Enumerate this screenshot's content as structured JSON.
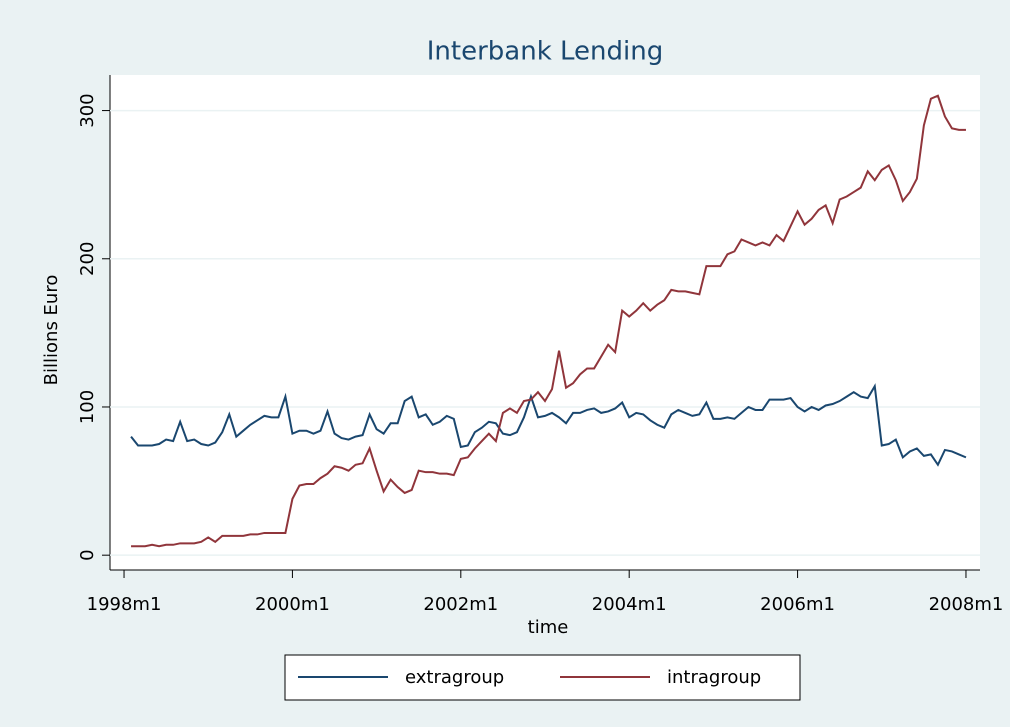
{
  "chart_data": {
    "type": "line",
    "title": "Interbank Lending",
    "x_label": "time",
    "y_label": "Billions Euro",
    "x": [
      "1998m2",
      "1998m3",
      "1998m4",
      "1998m5",
      "1998m6",
      "1998m7",
      "1998m8",
      "1998m9",
      "1998m10",
      "1998m11",
      "1998m12",
      "1999m1",
      "1999m2",
      "1999m3",
      "1999m4",
      "1999m5",
      "1999m6",
      "1999m7",
      "1999m8",
      "1999m9",
      "1999m10",
      "1999m11",
      "1999m12",
      "2000m1",
      "2000m2",
      "2000m3",
      "2000m4",
      "2000m5",
      "2000m6",
      "2000m7",
      "2000m8",
      "2000m9",
      "2000m10",
      "2000m11",
      "2000m12",
      "2001m1",
      "2001m2",
      "2001m3",
      "2001m4",
      "2001m5",
      "2001m6",
      "2001m7",
      "2001m8",
      "2001m9",
      "2001m10",
      "2001m11",
      "2001m12",
      "2002m1",
      "2002m2",
      "2002m3",
      "2002m4",
      "2002m5",
      "2002m6",
      "2002m7",
      "2002m8",
      "2002m9",
      "2002m10",
      "2002m11",
      "2002m12",
      "2003m1",
      "2003m2",
      "2003m3",
      "2003m4",
      "2003m5",
      "2003m6",
      "2003m7",
      "2003m8",
      "2003m9",
      "2003m10",
      "2003m11",
      "2003m12",
      "2004m1",
      "2004m2",
      "2004m3",
      "2004m4",
      "2004m5",
      "2004m6",
      "2004m7",
      "2004m8",
      "2004m9",
      "2004m10",
      "2004m11",
      "2004m12",
      "2005m1",
      "2005m2",
      "2005m3",
      "2005m4",
      "2005m5",
      "2005m6",
      "2005m7",
      "2005m8",
      "2005m9",
      "2005m10",
      "2005m11",
      "2005m12",
      "2006m1",
      "2006m2",
      "2006m3",
      "2006m4",
      "2006m5",
      "2006m6",
      "2006m7",
      "2006m8",
      "2006m9",
      "2006m10",
      "2006m11",
      "2006m12",
      "2007m1",
      "2007m2",
      "2007m3",
      "2007m4",
      "2007m5",
      "2007m6",
      "2007m7",
      "2007m8",
      "2007m9",
      "2007m10",
      "2007m11",
      "2007m12",
      "2008m1"
    ],
    "series": [
      {
        "name": "extragroup",
        "color": "#1a476f",
        "values": [
          80,
          74,
          74,
          74,
          75,
          78,
          77,
          90,
          77,
          78,
          75,
          74,
          76,
          83,
          95,
          80,
          84,
          88,
          91,
          94,
          93,
          93,
          107,
          82,
          84,
          84,
          82,
          84,
          97,
          82,
          79,
          78,
          80,
          81,
          95,
          85,
          82,
          89,
          89,
          104,
          107,
          93,
          95,
          88,
          90,
          94,
          92,
          73,
          74,
          83,
          86,
          90,
          89,
          82,
          81,
          83,
          93,
          107,
          93,
          94,
          96,
          93,
          89,
          96,
          96,
          98,
          99,
          96,
          97,
          99,
          103,
          93,
          96,
          95,
          91,
          88,
          86,
          95,
          98,
          96,
          94,
          95,
          103,
          92,
          92,
          93,
          92,
          96,
          100,
          98,
          98,
          105,
          105,
          105,
          106,
          100,
          97,
          100,
          98,
          101,
          102,
          104,
          107,
          110,
          107,
          106,
          114,
          74,
          75,
          78,
          66,
          70,
          72,
          67,
          68,
          61,
          71,
          70,
          68,
          66
        ]
      },
      {
        "name": "intragroup",
        "color": "#90353b",
        "values": [
          6,
          6,
          6,
          7,
          6,
          7,
          7,
          8,
          8,
          8,
          9,
          12,
          9,
          13,
          13,
          13,
          13,
          14,
          14,
          15,
          15,
          15,
          15,
          38,
          47,
          48,
          48,
          52,
          55,
          60,
          59,
          57,
          61,
          62,
          72,
          57,
          43,
          51,
          46,
          42,
          44,
          57,
          56,
          56,
          55,
          55,
          54,
          65,
          66,
          72,
          77,
          82,
          77,
          96,
          99,
          96,
          104,
          105,
          110,
          104,
          112,
          138,
          113,
          116,
          122,
          126,
          126,
          134,
          142,
          137,
          165,
          161,
          165,
          170,
          165,
          169,
          172,
          179,
          178,
          178,
          177,
          176,
          195,
          195,
          195,
          203,
          205,
          213,
          211,
          209,
          211,
          209,
          216,
          212,
          222,
          232,
          223,
          227,
          233,
          236,
          224,
          240,
          242,
          245,
          248,
          259,
          253,
          260,
          263,
          253,
          239,
          245,
          254,
          290,
          308,
          310,
          296,
          288,
          287,
          287
        ]
      }
    ],
    "xlim": [
      "1997m11",
      "2008m3"
    ],
    "xticks": [
      "1998m1",
      "2000m1",
      "2002m1",
      "2004m1",
      "2006m1",
      "2008m1"
    ],
    "ylim": [
      -10,
      324
    ],
    "yticks": [
      0,
      100,
      200,
      300
    ],
    "grid": true
  }
}
